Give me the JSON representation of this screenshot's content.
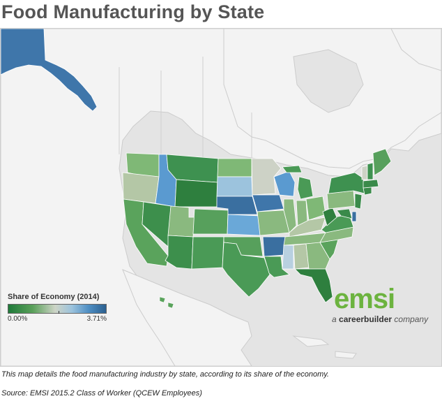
{
  "title": "Food Manufacturing by State",
  "legend": {
    "title": "Share of Economy (2014)",
    "min_label": "0.00%",
    "max_label": "3.71%",
    "min_value": 0.0,
    "max_value": 3.71
  },
  "logo": {
    "brand": "emsi",
    "tagline_prefix": "a ",
    "tagline_brand": "careerbuilder",
    "tagline_suffix": " company"
  },
  "caption": "This map details the food manufacturing industry by state, according to its share of the economy.",
  "source": "Source: EMSI 2015.2 Class of Worker (QCEW Employees)",
  "colors": {
    "land": "#f2f2f2",
    "water": "#e3e3e3",
    "border": "#c8c8c8",
    "green_dark": "#2b8a46",
    "green_mid": "#56a05d",
    "green_light": "#8ab97f",
    "neutral": "#cdd2c6",
    "blue_light": "#9cc3dd",
    "blue_mid": "#5a9ad0",
    "blue_dark": "#3a6fa0"
  }
}
